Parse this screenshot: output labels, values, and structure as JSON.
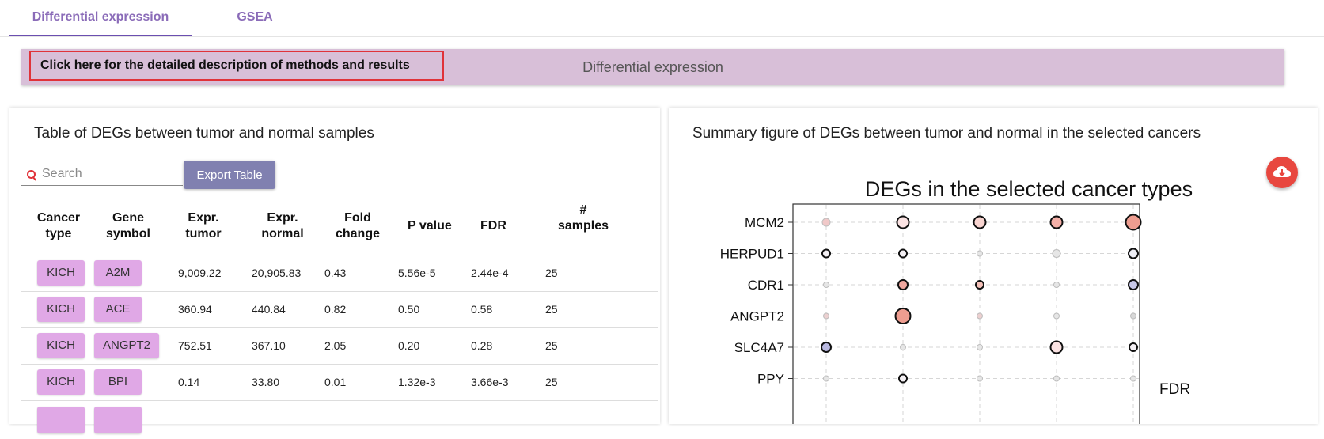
{
  "tabs": [
    {
      "label": "Differential expression",
      "active": true
    },
    {
      "label": "GSEA",
      "active": false
    }
  ],
  "banner": {
    "link_text": "Click here for the detailed description of methods and results",
    "center_text": "Differential expression"
  },
  "left_panel": {
    "title": "Table of DEGs between tumor and normal samples",
    "search_placeholder": "Search",
    "export_label": "Export Table",
    "columns": [
      {
        "line1": "Cancer",
        "line2": "type",
        "line3": ""
      },
      {
        "line1": "Gene",
        "line2": "symbol",
        "line3": ""
      },
      {
        "line1": "Expr.",
        "line2": "tumor",
        "line3": ""
      },
      {
        "line1": "Expr.",
        "line2": "normal",
        "line3": ""
      },
      {
        "line1": "Fold",
        "line2": "change",
        "line3": ""
      },
      {
        "line1": "",
        "line2": "P value",
        "line3": ""
      },
      {
        "line1": "",
        "line2": "FDR",
        "line3": ""
      },
      {
        "line1": "#",
        "line2": "samples",
        "line3": ""
      }
    ],
    "rows": [
      {
        "cancer": "KICH",
        "gene": "A2M",
        "tumor": "9,009.22",
        "normal": "20,905.83",
        "fc": "0.43",
        "p": "5.56e-5",
        "fdr": "2.44e-4",
        "n": "25"
      },
      {
        "cancer": "KICH",
        "gene": "ACE",
        "tumor": "360.94",
        "normal": "440.84",
        "fc": "0.82",
        "p": "0.50",
        "fdr": "0.58",
        "n": "25"
      },
      {
        "cancer": "KICH",
        "gene": "ANGPT2",
        "tumor": "752.51",
        "normal": "367.10",
        "fc": "2.05",
        "p": "0.20",
        "fdr": "0.28",
        "n": "25"
      },
      {
        "cancer": "KICH",
        "gene": "BPI",
        "tumor": "0.14",
        "normal": "33.80",
        "fc": "0.01",
        "p": "1.32e-3",
        "fdr": "3.66e-3",
        "n": "25"
      }
    ]
  },
  "right_panel": {
    "title": "Summary figure of DEGs between tumor and normal in the selected cancers",
    "download_icon": "cloud-download-icon"
  },
  "chart_data": {
    "type": "scatter",
    "title": "DEGs in the selected cancer types",
    "genes": [
      "MCM2",
      "HERPUD1",
      "CDR1",
      "ANGPT2",
      "SLC4A7",
      "PPY"
    ],
    "columns_count": 5,
    "legend_title": "FDR",
    "points": [
      {
        "gene": "MCM2",
        "col": 1,
        "size": "small",
        "fill": "#f0c8c8",
        "outline": "none"
      },
      {
        "gene": "MCM2",
        "col": 2,
        "size": "medium",
        "fill": "#fbe3e3",
        "outline": "bold"
      },
      {
        "gene": "MCM2",
        "col": 3,
        "size": "medium",
        "fill": "#f8d4d0",
        "outline": "bold"
      },
      {
        "gene": "MCM2",
        "col": 4,
        "size": "medium",
        "fill": "#f4b0a8",
        "outline": "bold"
      },
      {
        "gene": "MCM2",
        "col": 5,
        "size": "large",
        "fill": "#ee9d90",
        "outline": "bold"
      },
      {
        "gene": "HERPUD1",
        "col": 1,
        "size": "small",
        "fill": "#f4f0f4",
        "outline": "bold"
      },
      {
        "gene": "HERPUD1",
        "col": 2,
        "size": "small",
        "fill": "#f4f0f4",
        "outline": "bold"
      },
      {
        "gene": "HERPUD1",
        "col": 3,
        "size": "tiny",
        "fill": "#e6e6e6",
        "outline": "none"
      },
      {
        "gene": "HERPUD1",
        "col": 4,
        "size": "small",
        "fill": "#e6e6e6",
        "outline": "none"
      },
      {
        "gene": "HERPUD1",
        "col": 5,
        "size": "medium-small",
        "fill": "#eeeef6",
        "outline": "bold"
      },
      {
        "gene": "CDR1",
        "col": 1,
        "size": "tiny",
        "fill": "#e6e6e6",
        "outline": "none"
      },
      {
        "gene": "CDR1",
        "col": 2,
        "size": "medium-small",
        "fill": "#f0a8a0",
        "outline": "bold"
      },
      {
        "gene": "CDR1",
        "col": 3,
        "size": "small",
        "fill": "#f4c0b8",
        "outline": "bold"
      },
      {
        "gene": "CDR1",
        "col": 4,
        "size": "tiny",
        "fill": "#e6e6e6",
        "outline": "none"
      },
      {
        "gene": "CDR1",
        "col": 5,
        "size": "medium-small",
        "fill": "#c8c8e8",
        "outline": "bold"
      },
      {
        "gene": "ANGPT2",
        "col": 1,
        "size": "tiny",
        "fill": "#ecd0d0",
        "outline": "none"
      },
      {
        "gene": "ANGPT2",
        "col": 2,
        "size": "large",
        "fill": "#ee9d90",
        "outline": "bold"
      },
      {
        "gene": "ANGPT2",
        "col": 3,
        "size": "tiny",
        "fill": "#ecd0d0",
        "outline": "none"
      },
      {
        "gene": "ANGPT2",
        "col": 4,
        "size": "tiny",
        "fill": "#e6e6e6",
        "outline": "none"
      },
      {
        "gene": "ANGPT2",
        "col": 5,
        "size": "tiny",
        "fill": "#d8d8d8",
        "outline": "none"
      },
      {
        "gene": "SLC4A7",
        "col": 1,
        "size": "medium-small",
        "fill": "#b8b8e0",
        "outline": "bold"
      },
      {
        "gene": "SLC4A7",
        "col": 2,
        "size": "tiny",
        "fill": "#e6e6e6",
        "outline": "none"
      },
      {
        "gene": "SLC4A7",
        "col": 3,
        "size": "tiny",
        "fill": "#e6e6e6",
        "outline": "none"
      },
      {
        "gene": "SLC4A7",
        "col": 4,
        "size": "medium",
        "fill": "#fbe3e3",
        "outline": "bold"
      },
      {
        "gene": "SLC4A7",
        "col": 5,
        "size": "small",
        "fill": "#f4f0f4",
        "outline": "bold"
      },
      {
        "gene": "PPY",
        "col": 1,
        "size": "tiny",
        "fill": "#e6e6e6",
        "outline": "none"
      },
      {
        "gene": "PPY",
        "col": 2,
        "size": "small",
        "fill": "#f4f0f4",
        "outline": "bold"
      },
      {
        "gene": "PPY",
        "col": 3,
        "size": "tiny",
        "fill": "#e6e6e6",
        "outline": "none"
      },
      {
        "gene": "PPY",
        "col": 4,
        "size": "tiny",
        "fill": "#e6e6e6",
        "outline": "none"
      },
      {
        "gene": "PPY",
        "col": 5,
        "size": "tiny",
        "fill": "#e6e6e6",
        "outline": "none"
      }
    ],
    "grid": true
  },
  "colors": {
    "tab_text": "#8a6bb8",
    "banner_bg": "#d8bfd8",
    "chip_bg": "#e0a8e6",
    "export_bg": "#8080b0",
    "download_bg": "#e8473f",
    "highlight_border": "#e0333a"
  }
}
